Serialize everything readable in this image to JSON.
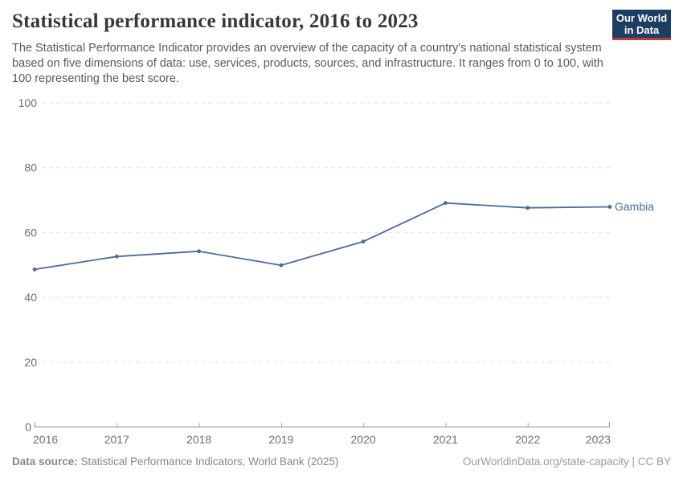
{
  "header": {
    "title": "Statistical performance indicator, 2016 to 2023",
    "subtitle": "The Statistical Performance Indicator provides an overview of the capacity of a country's national statistical system based on five dimensions of data: use, services, products, sources, and infrastructure. It ranges from 0 to 100, with 100 representing the best score.",
    "logo": {
      "line1": "Our World",
      "line2": "in Data",
      "bg_color": "#1d3d63",
      "accent_color": "#b5403e"
    }
  },
  "chart_data": {
    "type": "line",
    "title": "Statistical performance indicator, 2016 to 2023",
    "x": [
      2016,
      2017,
      2018,
      2019,
      2020,
      2021,
      2022,
      2023
    ],
    "series": [
      {
        "name": "Gambia",
        "values": [
          48.6,
          52.6,
          54.2,
          49.9,
          57.2,
          69.1,
          67.6,
          67.9
        ],
        "color": "#4c6a9c"
      }
    ],
    "xlabel": "",
    "ylabel": "",
    "ylim": [
      0,
      100
    ],
    "yticks": [
      0,
      20,
      40,
      60,
      80,
      100
    ],
    "grid": "horizontal-dashed",
    "grid_color": "#e2e2e2",
    "axis_color": "#8f8f8f",
    "tick_label_color": "#6e6e6e",
    "legend": "end-of-line-label"
  },
  "footer": {
    "source_label": "Data source:",
    "source_text": " Statistical Performance Indicators, World Bank (2025)",
    "note_right": "OurWorldinData.org/state-capacity | CC BY"
  }
}
